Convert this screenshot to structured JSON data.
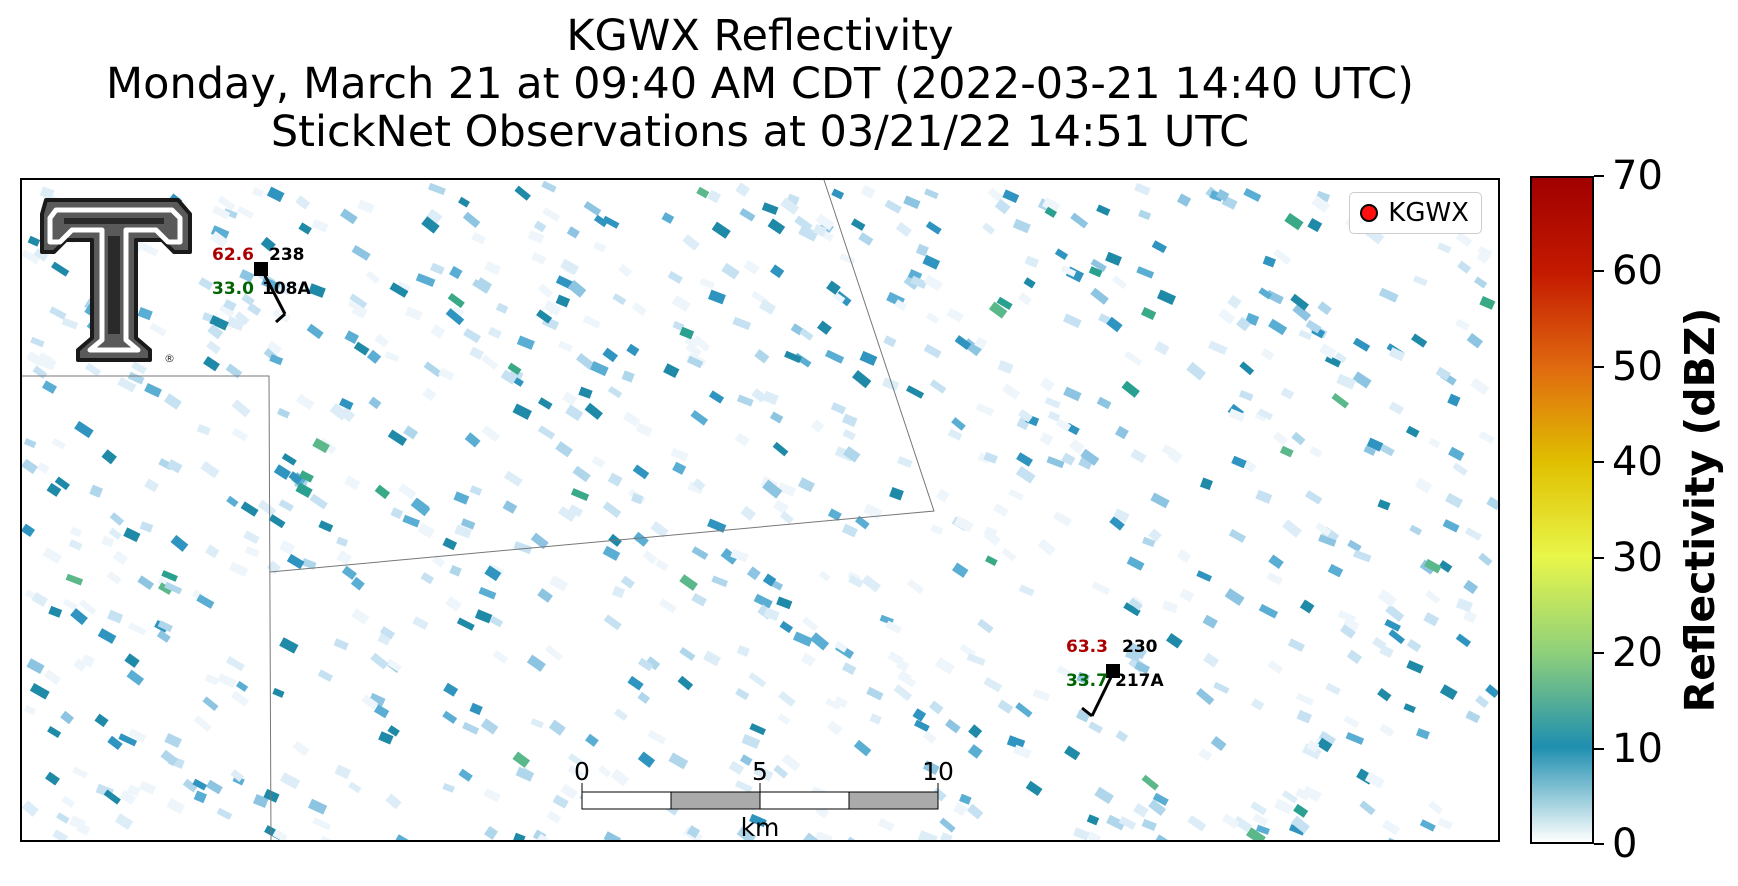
{
  "title": {
    "line1": "KGWX Reflectivity",
    "line2": "Monday, March 21 at 09:40 AM CDT (2022-03-21 14:40 UTC)",
    "line3": "StickNet Observations at 03/21/22 14:51 UTC"
  },
  "legend": {
    "label": "KGWX",
    "marker_color": "#ff1010"
  },
  "logo": {
    "text": "T",
    "registered_mark": "®"
  },
  "stations": [
    {
      "id": "108A",
      "temperature": "62.6",
      "dewpoint": "33.0",
      "wind_dir": "238",
      "temp_color": "#aa0000",
      "dew_color": "#006400"
    },
    {
      "id": "217A",
      "temperature": "63.3",
      "dewpoint": "33.7",
      "wind_dir": "230",
      "temp_color": "#aa0000",
      "dew_color": "#006400"
    }
  ],
  "scale_bar": {
    "labels": [
      "0",
      "5",
      "10"
    ],
    "unit": "km"
  },
  "colorbar": {
    "title": "Reflectivity (dBZ)",
    "ticks": [
      "0",
      "10",
      "20",
      "30",
      "40",
      "50",
      "60",
      "70"
    ],
    "range": [
      0,
      70
    ],
    "colors": [
      "#ffffff",
      "#1f8fb0",
      "#8fd07a",
      "#e8f64a",
      "#e0c000",
      "#e06a10",
      "#c41a00",
      "#a00000"
    ]
  }
}
